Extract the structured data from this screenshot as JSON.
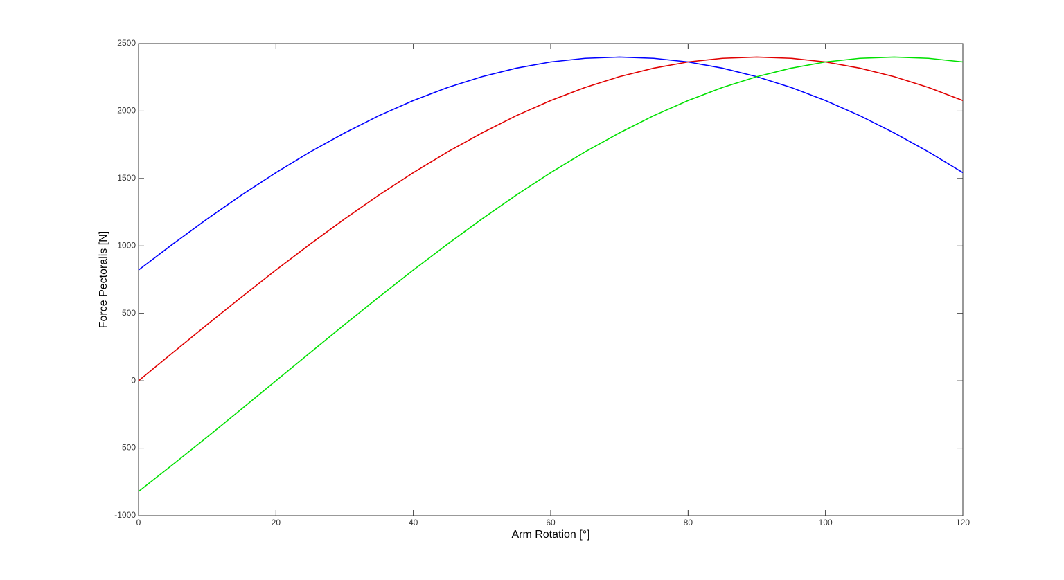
{
  "chart_data": {
    "type": "line",
    "x": [
      0,
      5,
      10,
      15,
      20,
      25,
      30,
      35,
      40,
      45,
      50,
      55,
      60,
      65,
      70,
      75,
      80,
      85,
      90,
      95,
      100,
      105,
      110,
      115,
      120
    ],
    "series": [
      {
        "color": "#0000ff",
        "values": [
          821,
          1014,
          1200,
          1377,
          1543,
          1697,
          1838,
          1966,
          2078,
          2175,
          2255,
          2318,
          2364,
          2391,
          2400,
          2391,
          2364,
          2318,
          2255,
          2175,
          2078,
          1966,
          1838,
          1697,
          1543
        ]
      },
      {
        "color": "#e00000",
        "values": [
          0,
          209,
          417,
          621,
          821,
          1014,
          1200,
          1377,
          1543,
          1697,
          1838,
          1966,
          2078,
          2175,
          2255,
          2318,
          2364,
          2391,
          2400,
          2391,
          2364,
          2318,
          2255,
          2175,
          2078
        ]
      },
      {
        "color": "#00e000",
        "values": [
          -821,
          -621,
          -417,
          -209,
          0,
          209,
          417,
          621,
          821,
          1014,
          1200,
          1377,
          1543,
          1697,
          1838,
          1966,
          2078,
          2175,
          2255,
          2318,
          2364,
          2391,
          2400,
          2391,
          2364
        ]
      }
    ],
    "xlabel": "Arm Rotation [°]",
    "ylabel": "Force Pectoralis [N]",
    "xlim": [
      0,
      120
    ],
    "xticks": [
      0,
      20,
      40,
      60,
      80,
      100,
      120
    ],
    "ylim": [
      -1000,
      2500
    ],
    "yticks": [
      -1000,
      -500,
      0,
      500,
      1000,
      1500,
      2000,
      2500
    ]
  }
}
